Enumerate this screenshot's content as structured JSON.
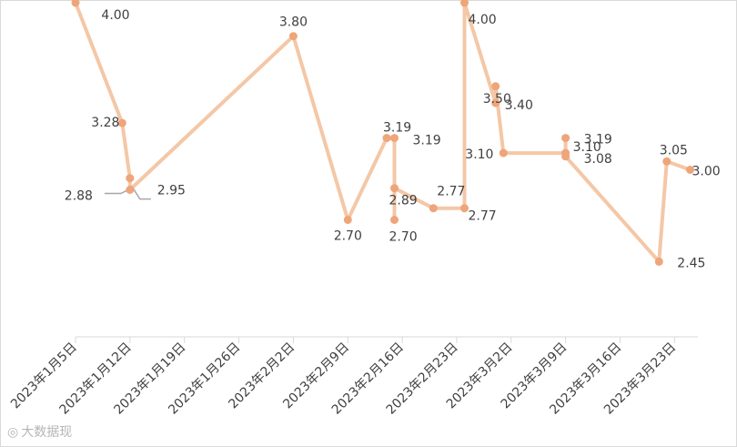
{
  "chart_data": {
    "type": "line",
    "title": "",
    "xlabel": "",
    "ylabel": "",
    "x_axis": "date",
    "xlim": [
      "2023-01-05",
      "2023-03-26"
    ],
    "ylim": [
      2.0,
      4.0
    ],
    "grid": false,
    "legend": "none",
    "line_color": "#f4c7a6",
    "marker_color": "#eea57a",
    "x_tick_labels": [
      "2023年1月5日",
      "2023年1月12日",
      "2023年1月19日",
      "2023年1月26日",
      "2023年2月2日",
      "2023年2月9日",
      "2023年2月16日",
      "2023年2月23日",
      "2023年3月2日",
      "2023年3月9日",
      "2023年3月16日",
      "2023年3月23日"
    ],
    "points": [
      {
        "x": "2023-01-05",
        "y": 4.0,
        "label": "4.00"
      },
      {
        "x": "2023-01-11",
        "y": 3.28,
        "label": "3.28"
      },
      {
        "x": "2023-01-12",
        "y": 2.95,
        "label": "2.95"
      },
      {
        "x": "2023-01-12",
        "y": 2.88,
        "label": "2.88"
      },
      {
        "x": "2023-02-02",
        "y": 3.8,
        "label": "3.80"
      },
      {
        "x": "2023-02-09",
        "y": 2.7,
        "label": "2.70"
      },
      {
        "x": "2023-02-14",
        "y": 3.19,
        "label": "3.19"
      },
      {
        "x": "2023-02-15",
        "y": 3.19,
        "label": "3.19"
      },
      {
        "x": "2023-02-15",
        "y": 2.7,
        "label": "2.70"
      },
      {
        "x": "2023-02-15",
        "y": 2.89,
        "label": "2.89"
      },
      {
        "x": "2023-02-20",
        "y": 2.77,
        "label": "2.77"
      },
      {
        "x": "2023-02-24",
        "y": 2.77,
        "label": "2.77"
      },
      {
        "x": "2023-02-24",
        "y": 4.0,
        "label": "4.00"
      },
      {
        "x": "2023-02-28",
        "y": 3.4,
        "label": "3.40"
      },
      {
        "x": "2023-02-28",
        "y": 3.5,
        "label": "3.50"
      },
      {
        "x": "2023-03-01",
        "y": 3.1,
        "label": "3.10"
      },
      {
        "x": "2023-03-09",
        "y": 3.1,
        "label": "3.10"
      },
      {
        "x": "2023-03-09",
        "y": 3.19,
        "label": "3.19"
      },
      {
        "x": "2023-03-09",
        "y": 3.08,
        "label": "3.08"
      },
      {
        "x": "2023-03-21",
        "y": 2.45,
        "label": "2.45"
      },
      {
        "x": "2023-03-22",
        "y": 3.05,
        "label": "3.05"
      },
      {
        "x": "2023-03-25",
        "y": 3.0,
        "label": "3.00"
      }
    ]
  },
  "watermark": {
    "icon": "camera-icon",
    "text": "大数据现"
  }
}
